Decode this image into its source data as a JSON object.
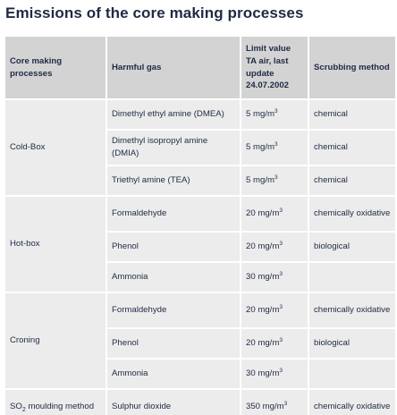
{
  "title": "Emissions of the core making processes",
  "headers": {
    "process": "Core making processes",
    "gas": "Harmful gas",
    "limit": "Limit value TA air, last update 24.07.2002",
    "scrubbing": "Scrubbing method"
  },
  "groups": [
    {
      "process": "Cold-Box",
      "rows": [
        {
          "gas": "Dimethyl ethyl amine (DMEA)",
          "limit_value": "5 mg/m",
          "limit_exp": "3",
          "scrubbing": "chemical"
        },
        {
          "gas": "Dimethyl isopropyl amine (DMIA)",
          "limit_value": "5 mg/m",
          "limit_exp": "3",
          "scrubbing": "chemical"
        },
        {
          "gas": "Triethyl amine (TEA)",
          "limit_value": "5 mg/m",
          "limit_exp": "3",
          "scrubbing": "chemical"
        }
      ]
    },
    {
      "process": "Hot-box",
      "rows": [
        {
          "gas": "Formaldehyde",
          "limit_value": "20 mg/m",
          "limit_exp": "3",
          "scrubbing": "chemically oxidative"
        },
        {
          "gas": "Phenol",
          "limit_value": "20 mg/m",
          "limit_exp": "3",
          "scrubbing": "biological"
        },
        {
          "gas": "Ammonia",
          "limit_value": "30 mg/m",
          "limit_exp": "3",
          "scrubbing": ""
        }
      ]
    },
    {
      "process": "Croning",
      "rows": [
        {
          "gas": "Formaldehyde",
          "limit_value": "20 mg/m",
          "limit_exp": "3",
          "scrubbing": "chemically oxidative"
        },
        {
          "gas": "Phenol",
          "limit_value": "20 mg/m",
          "limit_exp": "3",
          "scrubbing": "biological"
        },
        {
          "gas": "Ammonia",
          "limit_value": "30 mg/m",
          "limit_exp": "3",
          "scrubbing": ""
        }
      ]
    },
    {
      "process_pre": "SO",
      "process_sub": "2",
      "process_post": " moulding method",
      "rows": [
        {
          "gas": "Sulphur dioxide",
          "limit_value": "350 mg/m",
          "limit_exp": "3",
          "scrubbing": "chemically oxidative"
        }
      ]
    }
  ],
  "colors": {
    "header_bg": "#d3d3d3",
    "cell_bg": "#ececec",
    "text": "#1f2a44"
  }
}
